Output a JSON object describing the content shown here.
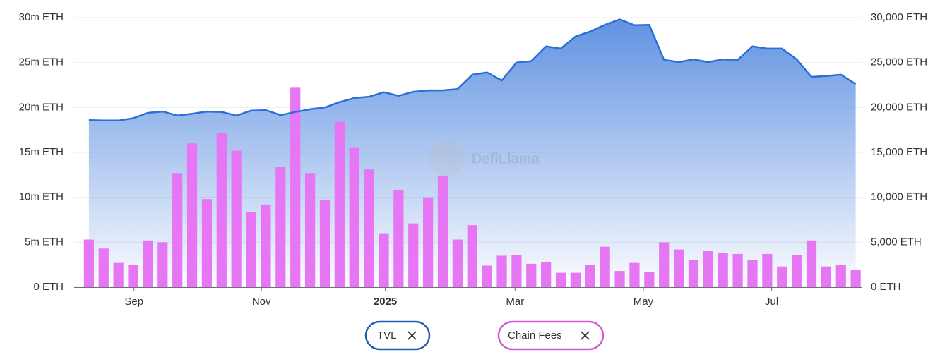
{
  "chart_data": {
    "type": "bar-area",
    "watermark": "DefiLlama",
    "xlim": [
      -1,
      52.4
    ],
    "xticks": [
      {
        "value": 3.06,
        "label": "Sep"
      },
      {
        "value": 11.7,
        "label": "Nov"
      },
      {
        "value": 20.1,
        "label": "2025"
      },
      {
        "value": 28.9,
        "label": "Mar"
      },
      {
        "value": 37.6,
        "label": "May"
      },
      {
        "value": 46.3,
        "label": "Jul"
      }
    ],
    "ylim": [
      0,
      30000000
    ],
    "yticks": [
      {
        "value": 0,
        "label": "0 ETH"
      },
      {
        "value": 5000000,
        "label": "5m ETH"
      },
      {
        "value": 10000000,
        "label": "10m ETH"
      },
      {
        "value": 15000000,
        "label": "15m ETH"
      },
      {
        "value": 20000000,
        "label": "20m ETH"
      },
      {
        "value": 25000000,
        "label": "25m ETH"
      },
      {
        "value": 30000000,
        "label": "30m ETH"
      }
    ],
    "y2lim": [
      0,
      30000
    ],
    "y2ticks": [
      {
        "value": 0,
        "label": "0 ETH"
      },
      {
        "value": 5000,
        "label": "5,000 ETH"
      },
      {
        "value": 10000,
        "label": "10,000 ETH"
      },
      {
        "value": 15000,
        "label": "15,000 ETH"
      },
      {
        "value": 20000,
        "label": "20,000 ETH"
      },
      {
        "value": 25000,
        "label": "25,000 ETH"
      },
      {
        "value": 30000,
        "label": "30,000 ETH"
      }
    ],
    "grid": true,
    "series": [
      {
        "name": "TVL",
        "type": "area",
        "axis": "y",
        "color": "#2b6ed8",
        "values": [
          18600000,
          18550000,
          18550000,
          18800000,
          19400000,
          19550000,
          19100000,
          19300000,
          19550000,
          19500000,
          19100000,
          19650000,
          19700000,
          19150000,
          19500000,
          19800000,
          20000000,
          20600000,
          21050000,
          21200000,
          21700000,
          21300000,
          21750000,
          21900000,
          21900000,
          22050000,
          23650000,
          23900000,
          23000000,
          25000000,
          25150000,
          26800000,
          26550000,
          27900000,
          28450000,
          29200000,
          29800000,
          29150000,
          29200000,
          25300000,
          25050000,
          25350000,
          25050000,
          25350000,
          25300000,
          26800000,
          26550000,
          26550000,
          25350000,
          23400000,
          23500000,
          23650000,
          22600000
        ]
      },
      {
        "name": "Chain Fees",
        "type": "bar",
        "axis": "y2",
        "color": "#e676f4",
        "values": [
          5300,
          4300,
          2700,
          2500,
          5200,
          5000,
          12700,
          16000,
          9800,
          17200,
          15200,
          8400,
          9200,
          13400,
          22200,
          12700,
          9700,
          18400,
          15500,
          13100,
          6000,
          10800,
          7100,
          10000,
          12400,
          5300,
          6900,
          2400,
          3500,
          3600,
          2600,
          2800,
          1600,
          1600,
          2500,
          4500,
          1800,
          2700,
          1700,
          5000,
          4200,
          3000,
          4000,
          3800,
          3700,
          3000,
          3700,
          2300,
          3600,
          5200,
          2300,
          2500,
          1900
        ]
      }
    ]
  }
}
